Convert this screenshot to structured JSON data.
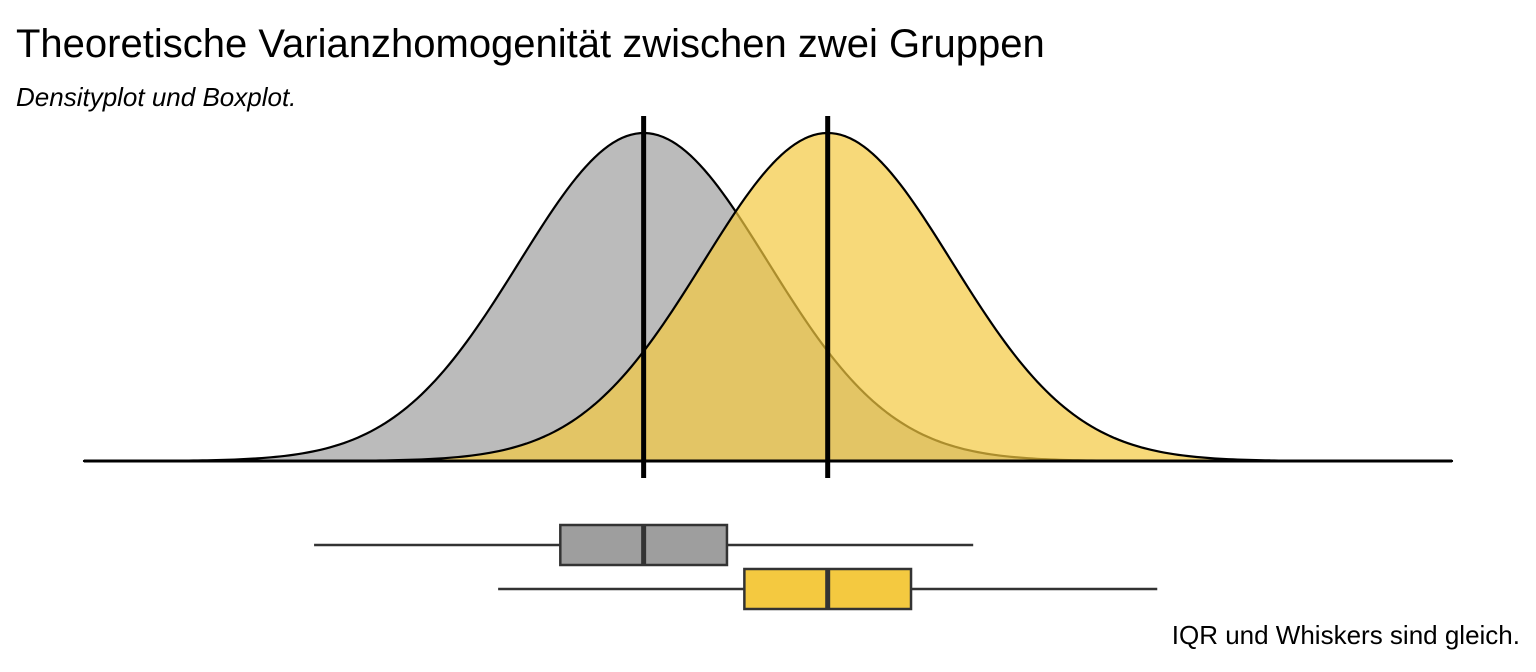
{
  "chart_data": {
    "type": "density",
    "title": "Theoretische Varianzhomogenität zwischen zwei Gruppen",
    "subtitle": "Densityplot und Boxplot.",
    "caption": "IQR und Whiskers sind gleich.",
    "xlabel": "",
    "ylabel": "",
    "xlim": [
      -4.5,
      6.5
    ],
    "grid": false,
    "legend": "none",
    "series": [
      {
        "group": 1,
        "color": "#9e9e9e",
        "mean": 0.0,
        "sd": 1.0,
        "box": {
          "whisker_low": -2.65,
          "q1": -0.67,
          "median": 0.0,
          "q3": 0.67,
          "whisker_high": 2.65
        }
      },
      {
        "group": 2,
        "color": "#f4c940",
        "mean": 1.48,
        "sd": 1.0,
        "box": {
          "whisker_low": -1.17,
          "q1": 0.81,
          "median": 1.48,
          "q3": 2.15,
          "whisker_high": 4.13
        }
      }
    ]
  }
}
